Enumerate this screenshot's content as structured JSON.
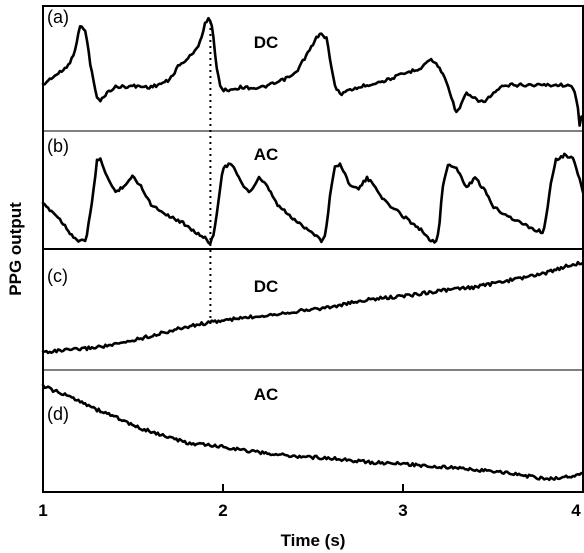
{
  "chart_data": {
    "type": "line",
    "ylabel": "PPG output",
    "xlabel": "Time (s)",
    "xlim": [
      1,
      4
    ],
    "x_ticks": [
      "1",
      "2",
      "3",
      "4"
    ],
    "y_ticks_visible": false,
    "panels": [
      {
        "tag": "(a)",
        "title": "DC",
        "series": [
          {
            "x": [
              1.0,
              1.05,
              1.1,
              1.15,
              1.18,
              1.2,
              1.22,
              1.24,
              1.26,
              1.28,
              1.3,
              1.32,
              1.35,
              1.4,
              1.5,
              1.6,
              1.7,
              1.75,
              1.8,
              1.85,
              1.88,
              1.9,
              1.92,
              1.94,
              1.96,
              1.98,
              2.0,
              2.05,
              2.1,
              2.2,
              2.3,
              2.4,
              2.45,
              2.5,
              2.52,
              2.55,
              2.58,
              2.6,
              2.62,
              2.64,
              2.66,
              2.7,
              2.8,
              2.9,
              3.0,
              3.1,
              3.15,
              3.2,
              3.25,
              3.28,
              3.3,
              3.33,
              3.35,
              3.4,
              3.45,
              3.5,
              3.55,
              3.6,
              3.7,
              3.8,
              3.9,
              3.95,
              3.97,
              3.98,
              3.99,
              4.0
            ],
            "y": [
              0.38,
              0.45,
              0.5,
              0.58,
              0.72,
              0.9,
              0.93,
              0.85,
              0.6,
              0.42,
              0.26,
              0.23,
              0.3,
              0.36,
              0.37,
              0.36,
              0.42,
              0.55,
              0.62,
              0.7,
              0.82,
              0.95,
              1.0,
              0.92,
              0.6,
              0.4,
              0.33,
              0.34,
              0.36,
              0.35,
              0.4,
              0.48,
              0.62,
              0.75,
              0.82,
              0.86,
              0.8,
              0.55,
              0.38,
              0.32,
              0.3,
              0.33,
              0.38,
              0.42,
              0.48,
              0.54,
              0.62,
              0.55,
              0.38,
              0.2,
              0.12,
              0.22,
              0.3,
              0.25,
              0.22,
              0.3,
              0.36,
              0.38,
              0.38,
              0.38,
              0.38,
              0.35,
              0.2,
              0.0,
              0.1,
              0.08
            ]
          }
        ]
      },
      {
        "tag": "(b)",
        "title": "AC",
        "series": [
          {
            "x": [
              1.0,
              1.05,
              1.1,
              1.15,
              1.2,
              1.24,
              1.28,
              1.3,
              1.32,
              1.36,
              1.4,
              1.45,
              1.5,
              1.55,
              1.6,
              1.7,
              1.8,
              1.85,
              1.9,
              1.93,
              1.95,
              1.98,
              2.0,
              2.05,
              2.1,
              2.15,
              2.2,
              2.25,
              2.3,
              2.4,
              2.5,
              2.55,
              2.57,
              2.6,
              2.62,
              2.65,
              2.7,
              2.75,
              2.8,
              2.85,
              2.9,
              3.0,
              3.1,
              3.15,
              3.18,
              3.2,
              3.22,
              3.25,
              3.3,
              3.35,
              3.4,
              3.45,
              3.5,
              3.6,
              3.7,
              3.78,
              3.8,
              3.82,
              3.85,
              3.9,
              3.95,
              3.98,
              4.0
            ],
            "y": [
              0.42,
              0.35,
              0.25,
              0.12,
              0.02,
              0.05,
              0.55,
              0.88,
              0.9,
              0.7,
              0.55,
              0.62,
              0.72,
              0.6,
              0.42,
              0.3,
              0.2,
              0.12,
              0.06,
              0.01,
              0.1,
              0.55,
              0.82,
              0.85,
              0.65,
              0.55,
              0.7,
              0.6,
              0.42,
              0.25,
              0.12,
              0.03,
              0.1,
              0.6,
              0.82,
              0.85,
              0.65,
              0.58,
              0.7,
              0.6,
              0.45,
              0.3,
              0.15,
              0.05,
              0.02,
              0.15,
              0.6,
              0.85,
              0.8,
              0.6,
              0.7,
              0.58,
              0.4,
              0.28,
              0.18,
              0.12,
              0.35,
              0.65,
              0.9,
              0.95,
              0.9,
              0.7,
              0.55
            ]
          }
        ]
      },
      {
        "tag": "(c)",
        "title": "DC",
        "series": [
          {
            "x": [
              1.0,
              1.2,
              1.4,
              1.6,
              1.8,
              1.9,
              2.0,
              2.2,
              2.4,
              2.6,
              2.8,
              3.0,
              3.2,
              3.4,
              3.6,
              3.8,
              3.9,
              4.0
            ],
            "y": [
              0.0,
              0.03,
              0.08,
              0.18,
              0.28,
              0.32,
              0.35,
              0.4,
              0.45,
              0.5,
              0.58,
              0.62,
              0.68,
              0.72,
              0.8,
              0.88,
              0.95,
              1.0
            ]
          }
        ]
      },
      {
        "tag": "(d)",
        "title": "AC",
        "series": [
          {
            "x": [
              1.0,
              1.1,
              1.2,
              1.3,
              1.4,
              1.5,
              1.6,
              1.7,
              1.8,
              1.9,
              2.0,
              2.2,
              2.4,
              2.6,
              2.8,
              3.0,
              3.2,
              3.4,
              3.6,
              3.7,
              3.8,
              3.9,
              4.0
            ],
            "y": [
              1.0,
              0.92,
              0.85,
              0.75,
              0.68,
              0.58,
              0.52,
              0.46,
              0.4,
              0.38,
              0.36,
              0.3,
              0.26,
              0.24,
              0.2,
              0.18,
              0.15,
              0.12,
              0.08,
              0.05,
              0.02,
              0.04,
              0.08
            ]
          }
        ]
      }
    ],
    "annotations": [
      {
        "type": "dotted-vertical-line",
        "x": 1.93,
        "spans": [
          "(a)",
          "(b)",
          "(c)"
        ]
      }
    ]
  }
}
